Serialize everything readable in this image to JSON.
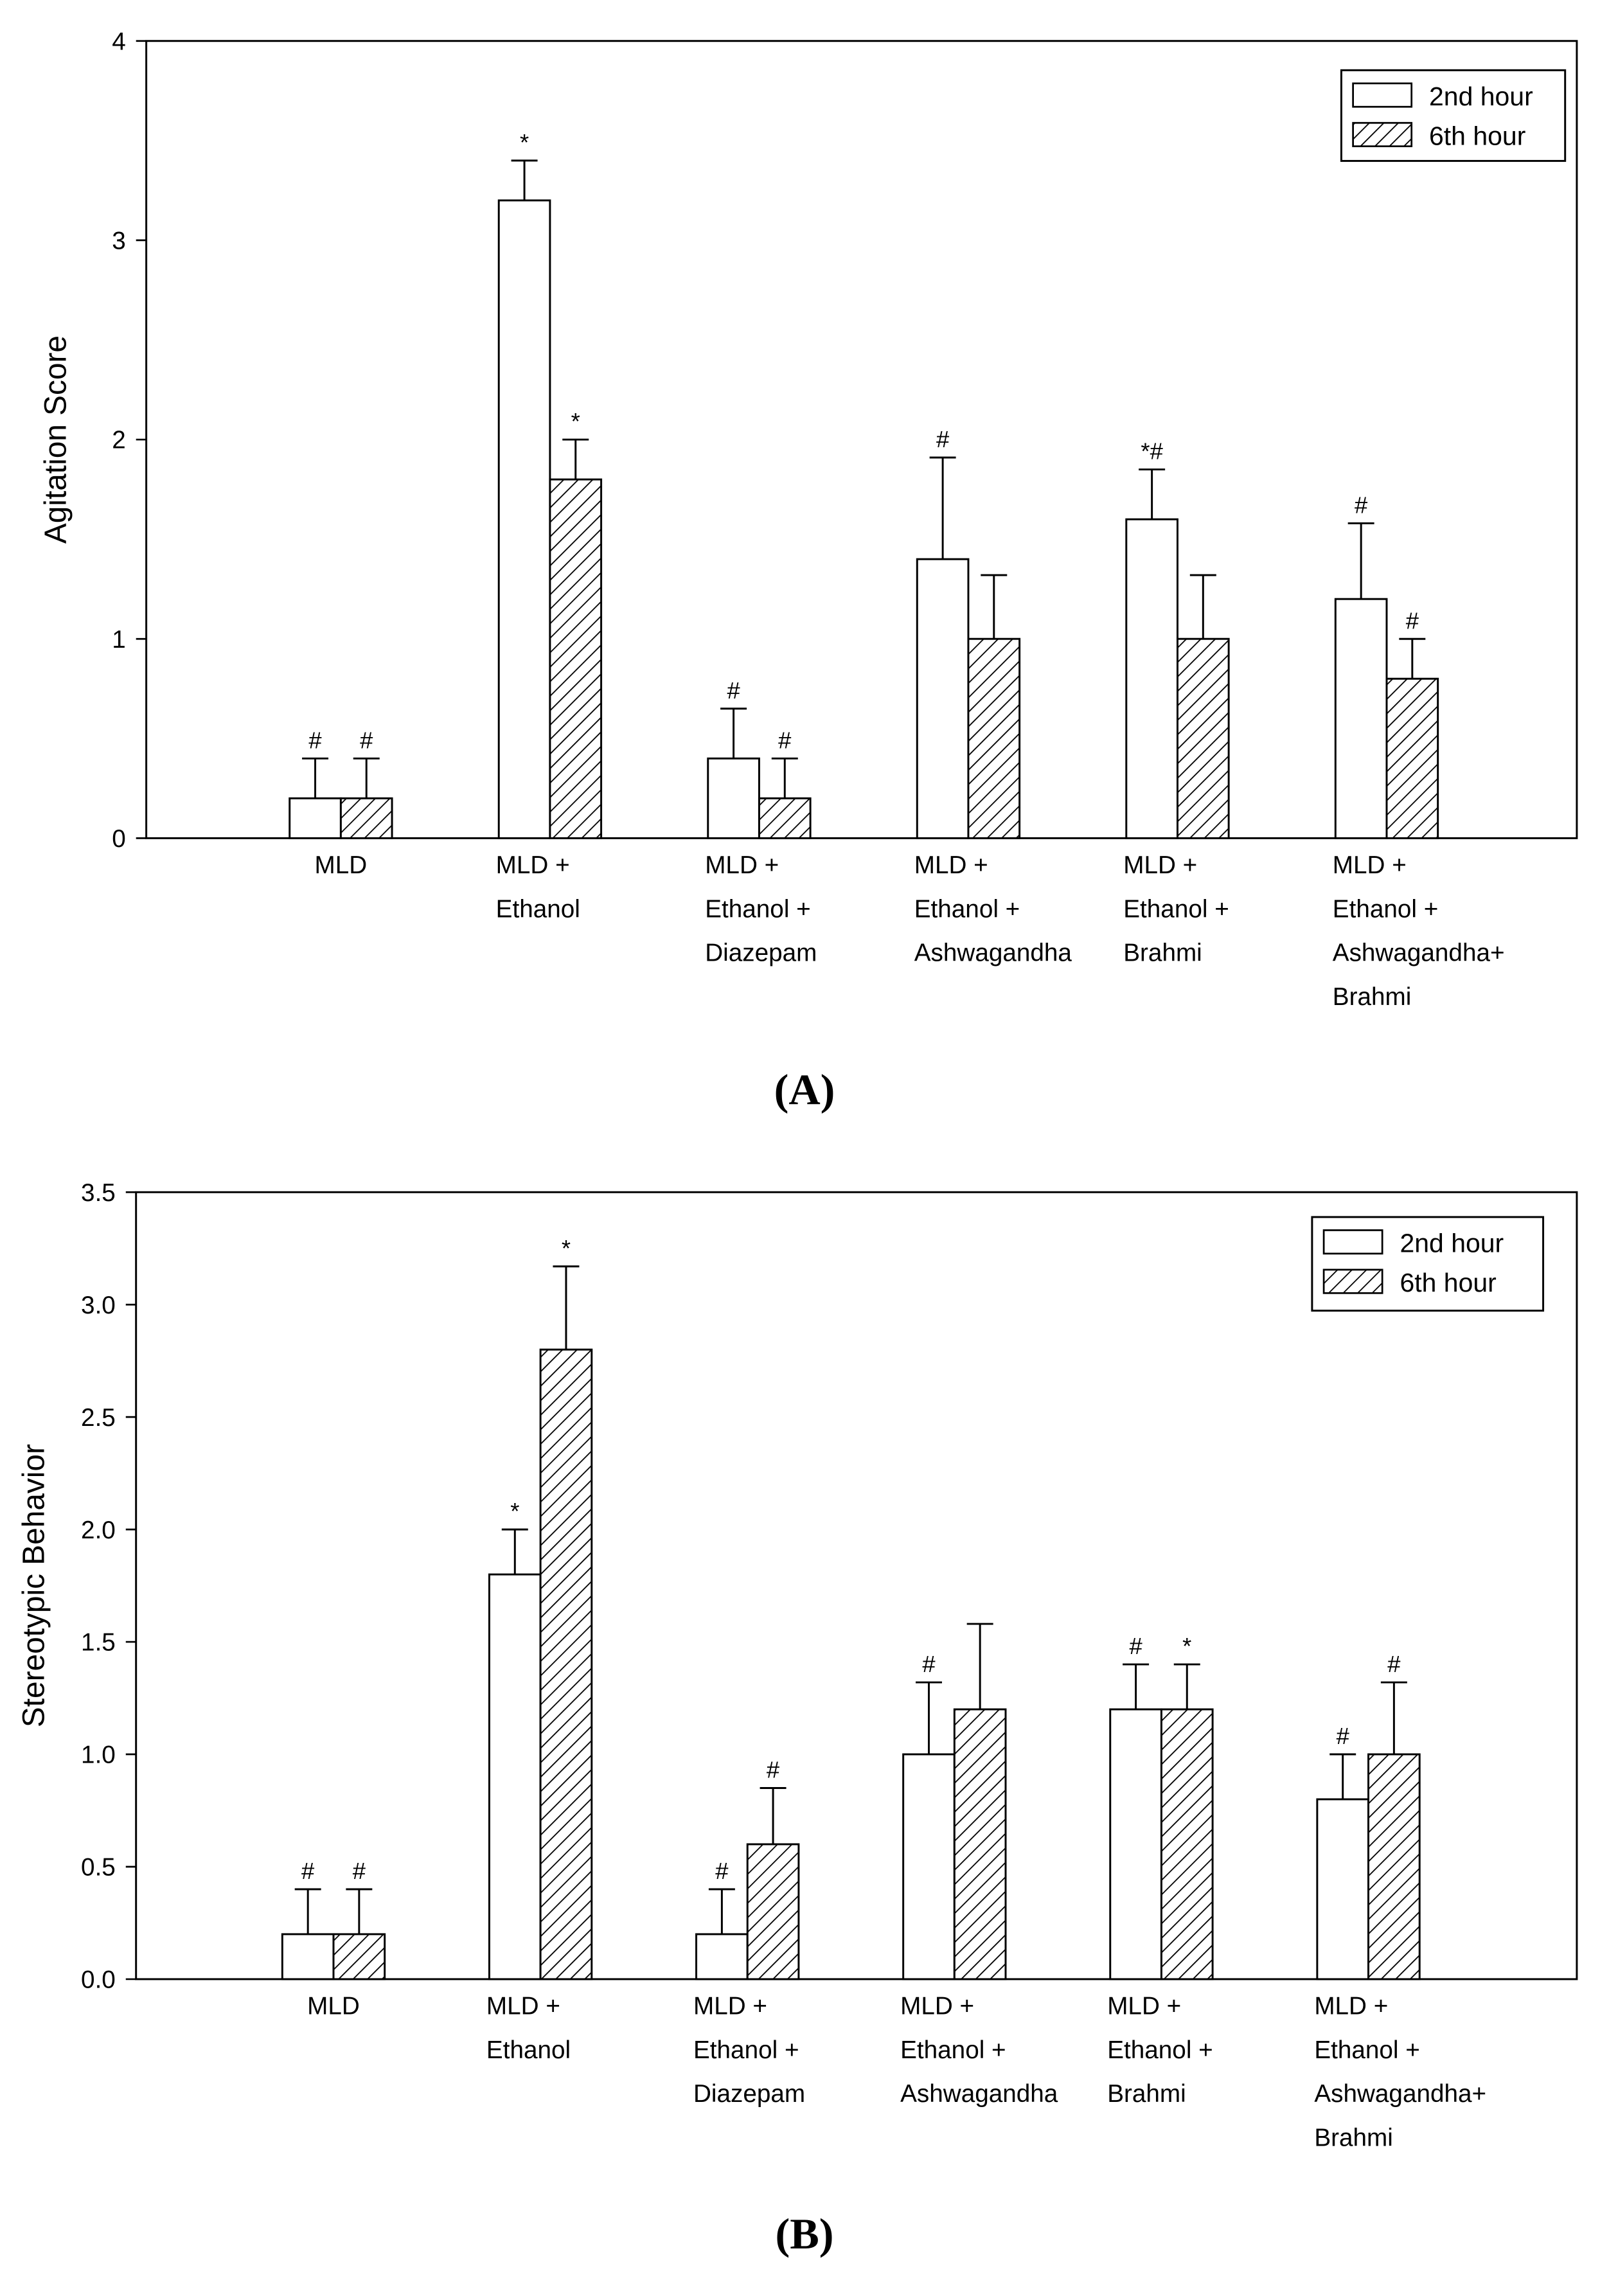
{
  "chart_data": [
    {
      "type": "bar",
      "panel_label": "(A)",
      "y_label": "Agitation Score",
      "categories": [
        [
          "MLD"
        ],
        [
          "MLD +",
          "Ethanol"
        ],
        [
          "MLD +",
          "Ethanol +",
          "Diazepam"
        ],
        [
          "MLD +",
          "Ethanol +",
          "Ashwagandha"
        ],
        [
          "MLD +",
          "Ethanol +",
          "Brahmi"
        ],
        [
          "MLD +",
          "Ethanol +",
          "Ashwagandha+",
          "Brahmi"
        ]
      ],
      "series": [
        {
          "name": "2nd hour",
          "color": "#ffffff",
          "values": [
            0.2,
            3.2,
            0.4,
            1.4,
            1.6,
            1.2
          ],
          "errors": [
            0.2,
            0.2,
            0.25,
            0.51,
            0.25,
            0.38
          ],
          "annotations": [
            "#",
            "*",
            "#",
            "#",
            "*#",
            "#"
          ]
        },
        {
          "name": "6th hour",
          "color": "#000000",
          "pattern": "hatch",
          "values": [
            0.2,
            1.8,
            0.2,
            1.0,
            1.0,
            0.8
          ],
          "errors": [
            0.2,
            0.2,
            0.2,
            0.32,
            0.32,
            0.2
          ],
          "annotations": [
            "#",
            "*",
            "#",
            null,
            null,
            "#"
          ]
        }
      ],
      "ylim": [
        0,
        4
      ],
      "yticks": [
        0,
        1,
        2,
        3,
        4
      ],
      "legend": "upper right",
      "grid": false
    },
    {
      "type": "bar",
      "panel_label": "(B)",
      "y_label": "Stereotypic Behavior",
      "categories": [
        [
          "MLD"
        ],
        [
          "MLD +",
          "Ethanol"
        ],
        [
          "MLD +",
          "Ethanol +",
          "Diazepam"
        ],
        [
          "MLD +",
          "Ethanol +",
          "Ashwagandha"
        ],
        [
          "MLD +",
          "Ethanol +",
          "Brahmi"
        ],
        [
          "MLD +",
          "Ethanol +",
          "Ashwagandha+",
          "Brahmi"
        ]
      ],
      "series": [
        {
          "name": "2nd hour",
          "color": "#ffffff",
          "values": [
            0.2,
            1.8,
            0.2,
            1.0,
            1.2,
            0.8
          ],
          "errors": [
            0.2,
            0.2,
            0.2,
            0.32,
            0.2,
            0.2
          ],
          "annotations": [
            "#",
            "*",
            "#",
            "#",
            "#",
            "#"
          ]
        },
        {
          "name": "6th hour",
          "color": "#000000",
          "pattern": "hatch",
          "values": [
            0.2,
            2.8,
            0.6,
            1.2,
            1.2,
            1.0
          ],
          "errors": [
            0.2,
            0.37,
            0.25,
            0.38,
            0.2,
            0.32
          ],
          "annotations": [
            "#",
            "*",
            "#",
            null,
            "*",
            "#"
          ]
        }
      ],
      "ylim": [
        0,
        3.5
      ],
      "yticks": [
        {
          "value": 0,
          "label": "0.0"
        },
        0.5,
        {
          "value": 1,
          "label": "1.0"
        },
        1.5,
        {
          "value": 2,
          "label": "2.0"
        },
        2.5,
        {
          "value": 3,
          "label": "3.0"
        },
        3.5
      ],
      "legend": "upper right",
      "grid": false
    }
  ]
}
